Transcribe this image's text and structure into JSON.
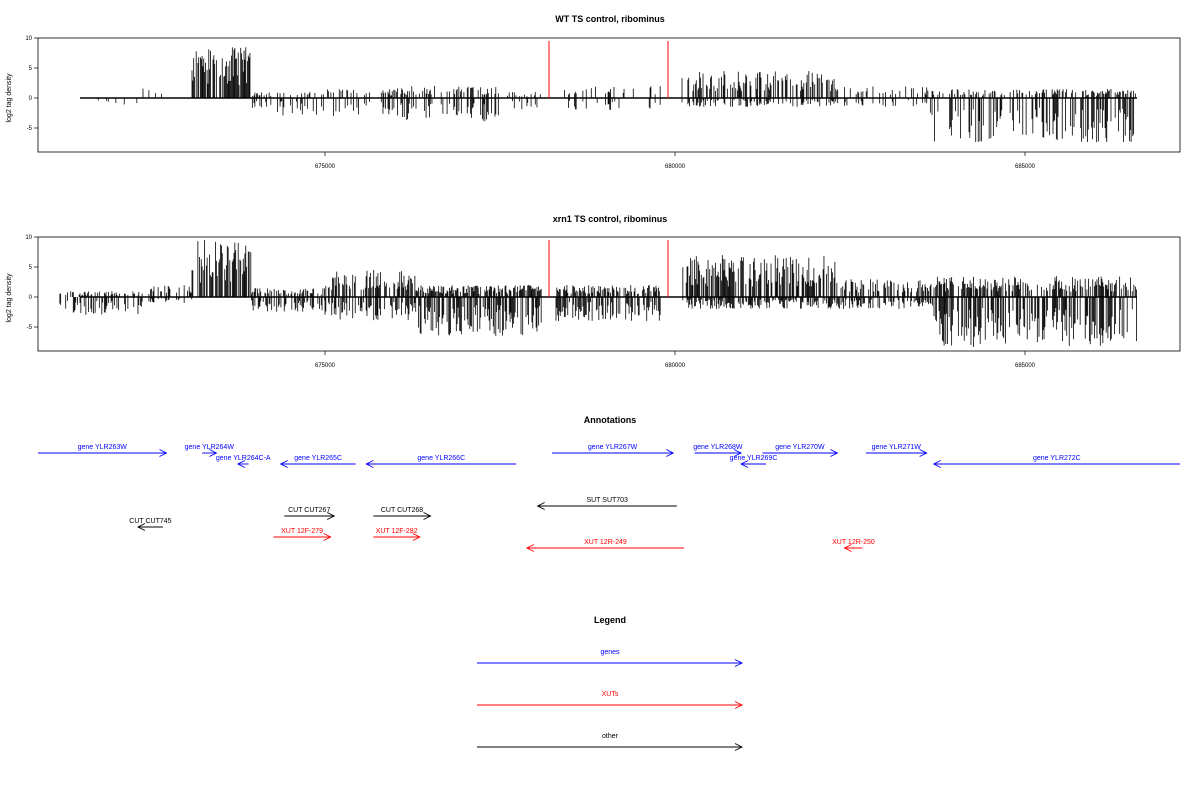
{
  "chart_data": [
    {
      "type": "bar",
      "title": "WT TS control, ribominus",
      "ylabel": "log2 tag density",
      "xlabel": "",
      "ylim": [
        -9,
        10
      ],
      "xlim": [
        671000,
        687000
      ],
      "yticks": [
        -5,
        0,
        5,
        10
      ],
      "xticks": [
        675000,
        680000,
        685000
      ],
      "xtick_labels": [
        "675000",
        "680000",
        "685000"
      ],
      "markers": [
        678200,
        679900
      ],
      "marker_color": "#ff0000",
      "bar_color": "#000000",
      "regions": [
        {
          "start": 671200,
          "end": 671700,
          "pos_max": 1,
          "neg_max": 0,
          "density": 0.05
        },
        {
          "start": 671700,
          "end": 672400,
          "pos_max": 0,
          "neg_max": -1.5,
          "density": 0.15
        },
        {
          "start": 672400,
          "end": 672800,
          "pos_max": 2,
          "neg_max": 0,
          "density": 0.3
        },
        {
          "start": 673100,
          "end": 673950,
          "pos_max": 8.5,
          "neg_max": 0,
          "density": 1.0
        },
        {
          "start": 673950,
          "end": 674400,
          "pos_max": 1,
          "neg_max": -2.5,
          "density": 0.4
        },
        {
          "start": 674400,
          "end": 676000,
          "pos_max": 1.5,
          "neg_max": -3,
          "density": 0.4
        },
        {
          "start": 676000,
          "end": 677500,
          "pos_max": 2,
          "neg_max": -4,
          "density": 0.5
        },
        {
          "start": 677500,
          "end": 678100,
          "pos_max": 1,
          "neg_max": -2,
          "density": 0.3
        },
        {
          "start": 678300,
          "end": 679800,
          "pos_max": 2,
          "neg_max": -2,
          "density": 0.2
        },
        {
          "start": 680100,
          "end": 682300,
          "pos_max": 4.5,
          "neg_max": -1.5,
          "density": 0.6
        },
        {
          "start": 682300,
          "end": 683600,
          "pos_max": 2,
          "neg_max": -1.5,
          "density": 0.3
        },
        {
          "start": 683600,
          "end": 686600,
          "pos_max": 1.5,
          "neg_max": -7.5,
          "density": 0.6
        }
      ]
    },
    {
      "type": "bar",
      "title": "xrn1 TS control, ribominus",
      "ylabel": "log2 tag density",
      "xlabel": "",
      "ylim": [
        -9,
        10
      ],
      "xlim": [
        671000,
        687000
      ],
      "yticks": [
        -5,
        0,
        5,
        10
      ],
      "xticks": [
        675000,
        680000,
        685000
      ],
      "xtick_labels": [
        "675000",
        "680000",
        "685000"
      ],
      "markers": [
        678200,
        679900
      ],
      "marker_color": "#ff0000",
      "bar_color": "#000000",
      "regions": [
        {
          "start": 671200,
          "end": 672400,
          "pos_max": 1,
          "neg_max": -3,
          "density": 0.5
        },
        {
          "start": 672400,
          "end": 673100,
          "pos_max": 2,
          "neg_max": -1,
          "density": 0.5
        },
        {
          "start": 673100,
          "end": 673950,
          "pos_max": 9.5,
          "neg_max": 0,
          "density": 1.0
        },
        {
          "start": 673950,
          "end": 675000,
          "pos_max": 1.5,
          "neg_max": -2.5,
          "density": 0.6
        },
        {
          "start": 675000,
          "end": 676300,
          "pos_max": 4.5,
          "neg_max": -4,
          "density": 0.8
        },
        {
          "start": 676300,
          "end": 678100,
          "pos_max": 2,
          "neg_max": -6.5,
          "density": 0.9
        },
        {
          "start": 678300,
          "end": 679800,
          "pos_max": 2,
          "neg_max": -4,
          "density": 0.8
        },
        {
          "start": 680100,
          "end": 682300,
          "pos_max": 7,
          "neg_max": -2,
          "density": 0.9
        },
        {
          "start": 682300,
          "end": 683700,
          "pos_max": 3,
          "neg_max": -2,
          "density": 0.6
        },
        {
          "start": 683700,
          "end": 686600,
          "pos_max": 3.5,
          "neg_max": -8.5,
          "density": 0.8
        }
      ]
    }
  ],
  "annotations": {
    "title": "Annotations",
    "items": [
      {
        "label": "gene YLR263W",
        "start": 671000,
        "end": 672800,
        "dir": "right",
        "row": 0,
        "color": "#0000ff"
      },
      {
        "label": "gene YLR264W",
        "start": 673300,
        "end": 673500,
        "dir": "right",
        "row": 0,
        "color": "#0000ff"
      },
      {
        "label": "gene YLR264C-A",
        "start": 673800,
        "end": 673950,
        "dir": "left",
        "row": 1,
        "color": "#0000ff"
      },
      {
        "label": "gene YLR265C",
        "start": 674400,
        "end": 675450,
        "dir": "left",
        "row": 1,
        "color": "#0000ff"
      },
      {
        "label": "gene YLR266C",
        "start": 675600,
        "end": 677700,
        "dir": "left",
        "row": 1,
        "color": "#0000ff"
      },
      {
        "label": "gene YLR267W",
        "start": 678200,
        "end": 679900,
        "dir": "right",
        "row": 0,
        "color": "#0000ff"
      },
      {
        "label": "gene YLR268W",
        "start": 680200,
        "end": 680850,
        "dir": "right",
        "row": 0,
        "color": "#0000ff"
      },
      {
        "label": "gene YLR269C",
        "start": 680850,
        "end": 681200,
        "dir": "left",
        "row": 1,
        "color": "#0000ff"
      },
      {
        "label": "gene YLR270W",
        "start": 681150,
        "end": 682200,
        "dir": "right",
        "row": 0,
        "color": "#0000ff"
      },
      {
        "label": "gene YLR271W",
        "start": 682600,
        "end": 683450,
        "dir": "right",
        "row": 0,
        "color": "#0000ff"
      },
      {
        "label": "gene YLR272C",
        "start": 683550,
        "end": 687000,
        "dir": "left",
        "row": 1,
        "color": "#0000ff"
      },
      {
        "label": "SUT SUT703",
        "start": 678000,
        "end": 679950,
        "dir": "left",
        "row": 2,
        "color": "#000000"
      },
      {
        "label": "CUT CUT267",
        "start": 674450,
        "end": 675150,
        "dir": "right",
        "row": 3,
        "color": "#000000"
      },
      {
        "label": "CUT CUT268",
        "start": 675700,
        "end": 676500,
        "dir": "right",
        "row": 3,
        "color": "#000000"
      },
      {
        "label": "CUT CUT745",
        "start": 672400,
        "end": 672750,
        "dir": "left",
        "row": 4,
        "color": "#000000"
      },
      {
        "label": "XUT 12F-279",
        "start": 674300,
        "end": 675100,
        "dir": "right",
        "row": 5,
        "color": "#ff0000"
      },
      {
        "label": "XUT 12F-282",
        "start": 675700,
        "end": 676350,
        "dir": "right",
        "row": 5,
        "color": "#ff0000"
      },
      {
        "label": "XUT 12R-249",
        "start": 677850,
        "end": 680050,
        "dir": "left",
        "row": 6,
        "color": "#ff0000"
      },
      {
        "label": "XUT 12R-250",
        "start": 682300,
        "end": 682550,
        "dir": "left",
        "row": 6,
        "color": "#ff0000"
      }
    ]
  },
  "legend": {
    "title": "Legend",
    "items": [
      {
        "label": "genes",
        "color": "#0000ff"
      },
      {
        "label": "XUTs",
        "color": "#ff0000"
      },
      {
        "label": "other",
        "color": "#000000"
      }
    ]
  }
}
